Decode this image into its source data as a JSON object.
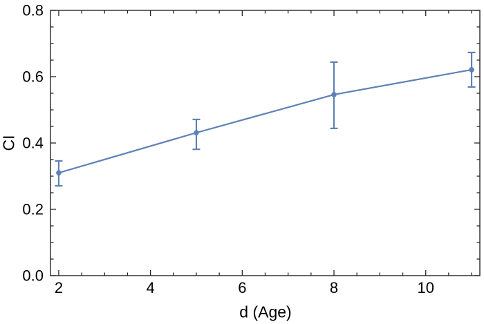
{
  "chart_data": {
    "type": "line",
    "title": "",
    "xlabel": "d (Age)",
    "ylabel": "CI",
    "x": [
      2,
      5,
      8,
      11
    ],
    "y": [
      0.31,
      0.431,
      0.546,
      0.621
    ],
    "error_low": [
      0.271,
      0.381,
      0.444,
      0.569
    ],
    "error_high": [
      0.346,
      0.471,
      0.644,
      0.673
    ],
    "xlim": [
      1.82,
      11.18
    ],
    "ylim": [
      0,
      0.8
    ],
    "x_major_ticks": [
      2,
      4,
      6,
      8,
      10
    ],
    "x_tick_labels": [
      "2",
      "4",
      "6",
      "8",
      "10"
    ],
    "x_minor_step": 0.5,
    "y_major_ticks": [
      0,
      0.2,
      0.4,
      0.6,
      0.8
    ],
    "y_tick_labels": [
      "0.0",
      "0.2",
      "0.4",
      "0.6",
      "0.8"
    ],
    "y_minor_step": 0.05,
    "grid": false,
    "legend": null,
    "frame": true,
    "marker": "circle",
    "series_color": "#5E81B5",
    "frame_color": "#262626",
    "text_color": "#000000",
    "background_color": "#ffffff"
  }
}
